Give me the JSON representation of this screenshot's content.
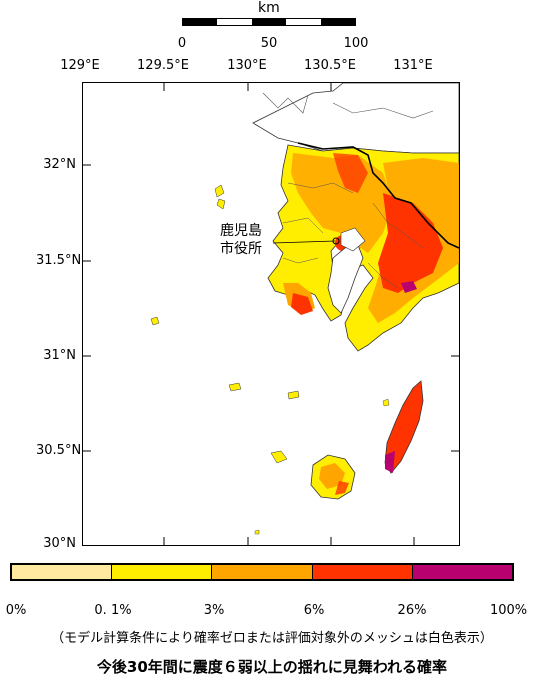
{
  "scale_bar": {
    "unit": "km",
    "ticks": [
      "0",
      "50",
      "100"
    ]
  },
  "axes": {
    "lon_ticks": [
      "129°E",
      "129.5°E",
      "130°E",
      "130.5°E",
      "131°E"
    ],
    "lat_ticks": [
      "32°N",
      "31.5°N",
      "31°N",
      "30.5°N",
      "30°N"
    ]
  },
  "annotation": {
    "city_line1": "鹿児島",
    "city_line2": "市役所"
  },
  "legend": {
    "labels": [
      "0%",
      "0. 1%",
      "3%",
      "6%",
      "26%",
      "100%"
    ],
    "colors": [
      "#ffe8a0",
      "#ffee00",
      "#ffa500",
      "#ff3300",
      "#b8006e"
    ]
  },
  "footnote": "（モデル計算条件により確率ゼロまたは評価対象外のメッシュは白色表示）",
  "title": "今後30年間に震度６弱以上の揺れに見舞われる確率",
  "colors": {
    "low": "#ffee00",
    "mid": "#ffa500",
    "high": "#ff3300",
    "veryhigh": "#b8006e"
  }
}
